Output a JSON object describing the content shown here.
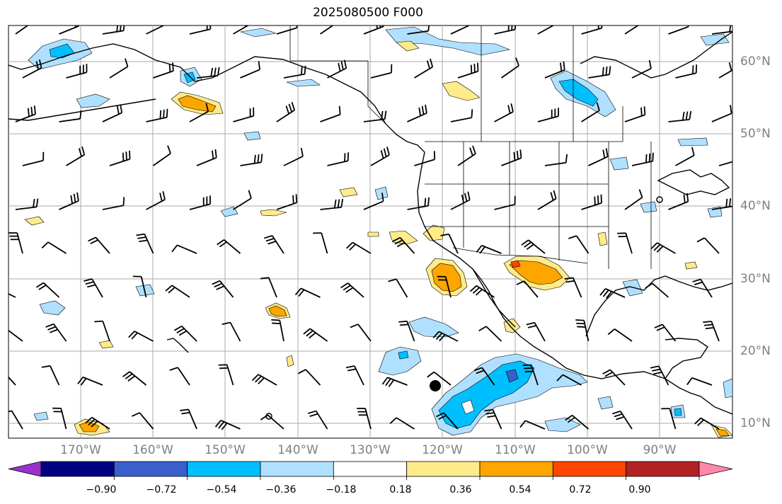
{
  "title": "2025080500 F000",
  "lat_labels": [
    "60°N",
    "50°N",
    "40°N",
    "30°N",
    "20°N",
    "10°N"
  ],
  "lon_labels": [
    "170°W",
    "160°W",
    "150°W",
    "140°W",
    "130°W",
    "120°W",
    "110°W",
    "100°W",
    "90°W"
  ],
  "colorbar": {
    "ticks": [
      "−0.90",
      "−0.72",
      "−0.54",
      "−0.36",
      "−0.18",
      "0.18",
      "0.36",
      "0.54",
      "0.72",
      "0.90"
    ],
    "colors": [
      "#9932cc",
      "#000080",
      "#3a5fcd",
      "#00bfff",
      "#b0e0ff",
      "#ffffff",
      "#ffeb8a",
      "#ffa500",
      "#ff4500",
      "#b22222",
      "#ff88aa"
    ]
  },
  "map": {
    "lon_range": [
      -180,
      -80
    ],
    "lat_range": [
      8,
      65
    ],
    "gridlines": true,
    "fill_colors": {
      "neg_light": "#b0e0ff",
      "neg_mid": "#00bfff",
      "neg_strong": "#3a5fcd",
      "pos_light": "#ffeb8a",
      "pos_mid": "#ffa500"
    }
  }
}
